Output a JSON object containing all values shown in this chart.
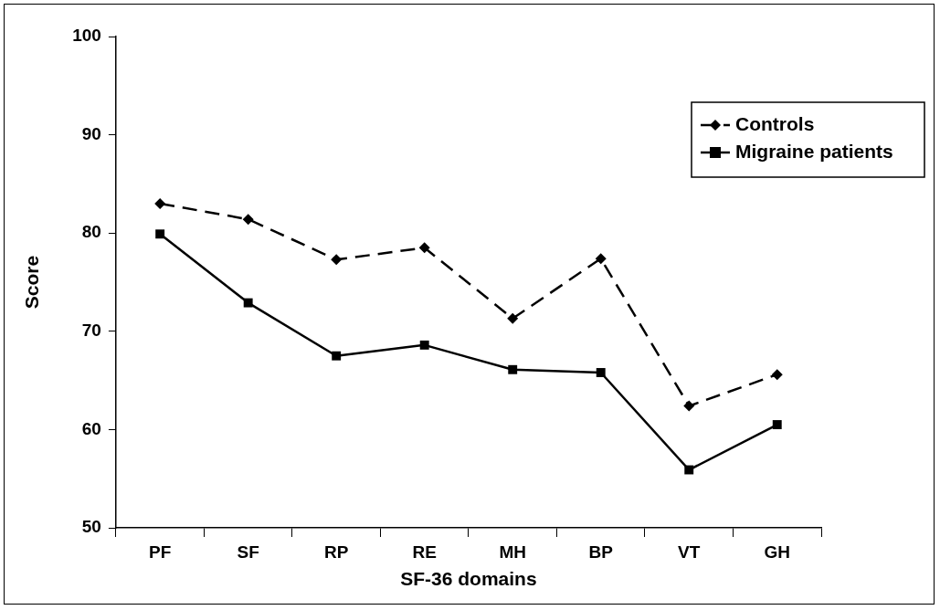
{
  "chart_data": {
    "type": "line",
    "xlabel": "SF-36 domains",
    "ylabel": "Score",
    "categories": [
      "PF",
      "SF",
      "RP",
      "RE",
      "MH",
      "BP",
      "VT",
      "GH"
    ],
    "series": [
      {
        "name": "Controls",
        "color": "#000000",
        "marker": "diamond",
        "line_style": "dashed",
        "values": [
          83.0,
          81.4,
          77.3,
          78.5,
          71.3,
          77.4,
          62.4,
          65.6
        ]
      },
      {
        "name": "Migraine patients",
        "color": "#000000",
        "marker": "square",
        "line_style": "solid",
        "values": [
          79.9,
          72.9,
          67.5,
          68.6,
          66.1,
          65.8,
          55.9,
          60.5
        ]
      }
    ],
    "ylim": [
      50,
      100
    ],
    "yticks": [
      50,
      60,
      70,
      80,
      90,
      100
    ],
    "grid": false,
    "legend": "top right"
  }
}
